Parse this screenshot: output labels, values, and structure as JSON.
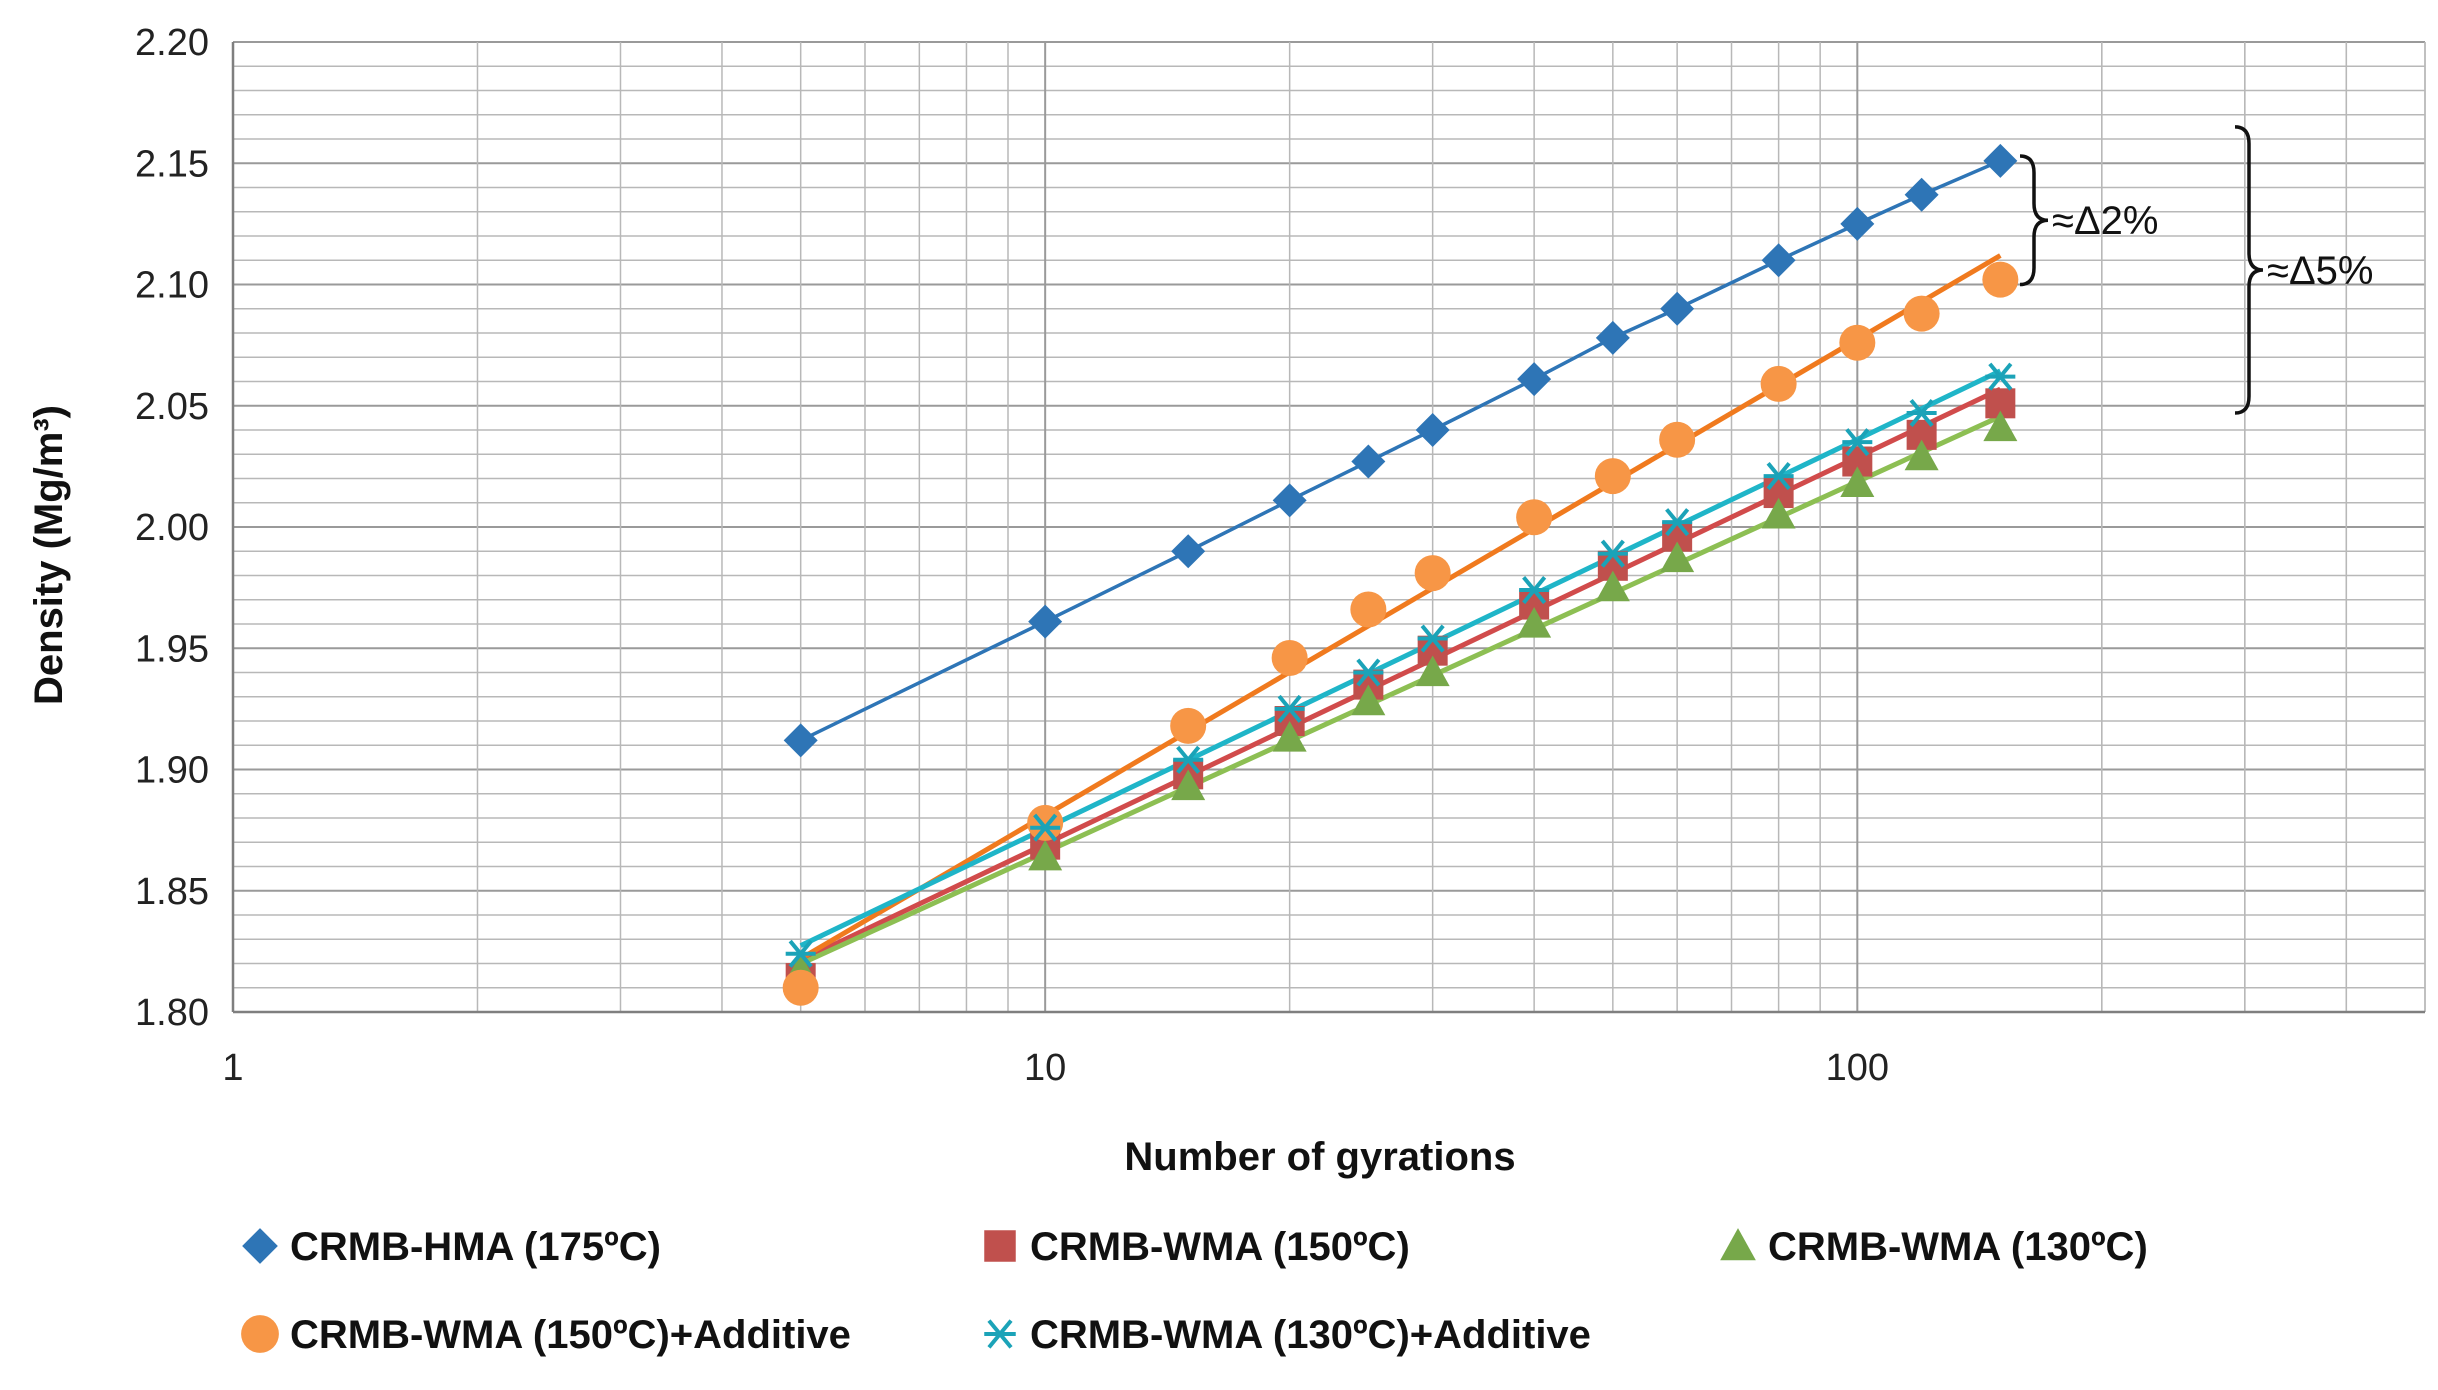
{
  "chart_data": {
    "type": "scatter",
    "title": "",
    "xlabel": "Number of gyrations",
    "ylabel": "Density (Mg/m³)",
    "xscale": "log",
    "xlim": [
      1,
      500
    ],
    "ylim": [
      1.8,
      2.2
    ],
    "grid": true,
    "legend_position": "bottom",
    "x_ticks": [
      {
        "value": 1,
        "label": "1"
      },
      {
        "value": 10,
        "label": "10"
      },
      {
        "value": 100,
        "label": "100"
      }
    ],
    "y_ticks": [
      {
        "value": 1.8,
        "label": "1.80"
      },
      {
        "value": 1.85,
        "label": "1.85"
      },
      {
        "value": 1.9,
        "label": "1.90"
      },
      {
        "value": 1.95,
        "label": "1.95"
      },
      {
        "value": 2.0,
        "label": "2.00"
      },
      {
        "value": 2.05,
        "label": "2.05"
      },
      {
        "value": 2.1,
        "label": "2.10"
      },
      {
        "value": 2.15,
        "label": "2.15"
      },
      {
        "value": 2.2,
        "label": "2.20"
      }
    ],
    "series": [
      {
        "name": "CRMB-HMA (175ºC)",
        "marker": "diamond",
        "color": "#2E75B6",
        "line_color": "#2E75B6",
        "connect_points": true,
        "x": [
          5,
          10,
          15,
          20,
          25,
          30,
          40,
          50,
          60,
          80,
          100,
          120,
          150
        ],
        "y": [
          1.912,
          1.961,
          1.99,
          2.011,
          2.027,
          2.04,
          2.061,
          2.078,
          2.09,
          2.11,
          2.125,
          2.137,
          2.151
        ]
      },
      {
        "name": "CRMB-WMA (150ºC)",
        "marker": "square",
        "color": "#C0504D",
        "line_color": "#D14B4B",
        "trendline": "log",
        "x": [
          5,
          10,
          15,
          20,
          25,
          30,
          40,
          50,
          60,
          80,
          100,
          120,
          150
        ],
        "y": [
          1.814,
          1.869,
          1.898,
          1.92,
          1.935,
          1.949,
          1.968,
          1.984,
          1.996,
          2.014,
          2.027,
          2.038,
          2.051
        ]
      },
      {
        "name": "CRMB-WMA (130ºC)",
        "marker": "triangle",
        "color": "#77A84A",
        "line_color": "#8DBF53",
        "trendline": "log",
        "x": [
          5,
          10,
          15,
          20,
          25,
          30,
          40,
          50,
          60,
          80,
          100,
          120,
          150
        ],
        "y": [
          1.817,
          1.864,
          1.893,
          1.913,
          1.928,
          1.94,
          1.96,
          1.975,
          1.987,
          2.005,
          2.018,
          2.029,
          2.041
        ]
      },
      {
        "name": "CRMB-WMA (150ºC)+Additive",
        "marker": "circle",
        "color": "#F79646",
        "line_color": "#F07A1E",
        "trendline": "log",
        "x": [
          5,
          10,
          15,
          20,
          25,
          30,
          40,
          50,
          60,
          80,
          100,
          120,
          150
        ],
        "y": [
          1.81,
          1.878,
          1.918,
          1.946,
          1.966,
          1.981,
          2.004,
          2.021,
          2.036,
          2.059,
          2.076,
          2.088,
          2.102
        ]
      },
      {
        "name": "CRMB-WMA (130ºC)+Additive",
        "marker": "asterisk",
        "color": "#1BA3B8",
        "line_color": "#1FB5C8",
        "trendline": "log",
        "x": [
          5,
          10,
          15,
          20,
          25,
          30,
          40,
          50,
          60,
          80,
          100,
          120,
          150
        ],
        "y": [
          1.824,
          1.876,
          1.904,
          1.925,
          1.94,
          1.954,
          1.974,
          1.989,
          2.002,
          2.021,
          2.035,
          2.047,
          2.062
        ]
      }
    ],
    "annotations": [
      {
        "text": "≈Δ2%",
        "y_range": [
          2.1,
          2.153
        ]
      },
      {
        "text": "≈Δ5%",
        "y_range": [
          2.047,
          2.165
        ]
      }
    ]
  }
}
